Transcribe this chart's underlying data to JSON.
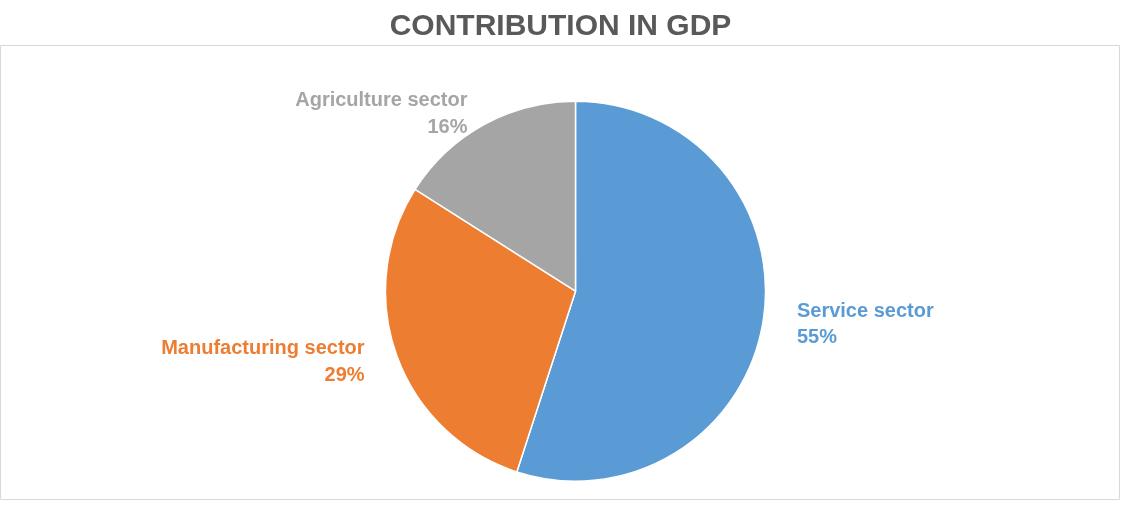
{
  "chart_data": {
    "type": "pie",
    "title": "CONTRIBUTION IN GDP",
    "categories": [
      "Service sector",
      "Manufacturing sector",
      "Agriculture sector"
    ],
    "values": [
      55,
      29,
      16
    ],
    "value_labels": [
      "55%",
      "29%",
      "16%"
    ],
    "colors": [
      "#5b9bd5",
      "#ed7d31",
      "#a5a5a5"
    ]
  }
}
